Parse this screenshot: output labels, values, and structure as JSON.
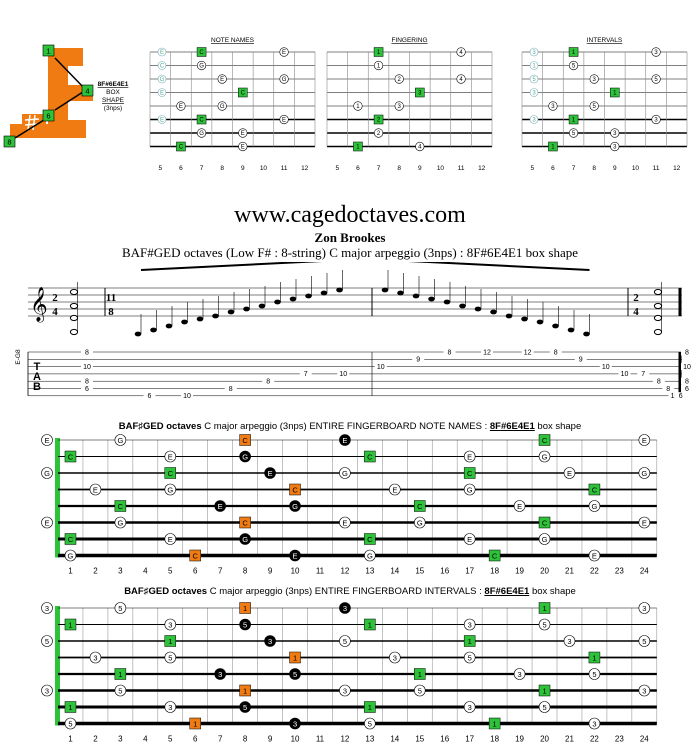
{
  "logo": {
    "notes": [
      "1",
      "4",
      "6",
      "8"
    ],
    "shape_label": [
      "8F#6E4E1",
      "BOX",
      "SHAPE",
      "(3nps)"
    ],
    "colors": {
      "orange": "#f07b12",
      "green": "#2ec13a"
    }
  },
  "mini_diagrams": [
    {
      "title": "NOTE NAMES",
      "grid": [
        [
          "",
          "C",
          "",
          "",
          "E"
        ],
        [
          "",
          "G",
          "",
          "",
          ""
        ],
        [
          "",
          "",
          "E",
          "",
          "G"
        ],
        [
          "",
          "",
          "",
          "C",
          ""
        ],
        [
          "E",
          "",
          "G",
          "",
          ""
        ],
        [
          "",
          "C",
          "",
          "",
          "E"
        ],
        [
          "",
          "G",
          "",
          "E",
          ""
        ],
        [
          "C",
          "",
          "",
          "E",
          ""
        ]
      ],
      "open": [
        "E",
        "C",
        "G",
        "E",
        "",
        "E",
        "",
        ""
      ]
    },
    {
      "title": "FINGERING",
      "grid": [
        [
          "",
          "1",
          "",
          "",
          "4"
        ],
        [
          "",
          "1",
          "",
          "",
          ""
        ],
        [
          "",
          "",
          "2",
          "",
          "4"
        ],
        [
          "",
          "",
          "",
          "3",
          ""
        ],
        [
          "1",
          "",
          "3",
          "",
          ""
        ],
        [
          "",
          "2",
          "",
          "",
          ""
        ],
        [
          "",
          "2",
          "",
          "",
          ""
        ],
        [
          "1",
          "",
          "",
          "4",
          ""
        ]
      ],
      "open": [
        "",
        "",
        "",
        "",
        "",
        "",
        "",
        ""
      ]
    },
    {
      "title": "INTERVALS",
      "grid": [
        [
          "",
          "1",
          "",
          "",
          "3"
        ],
        [
          "",
          "5",
          "",
          "",
          ""
        ],
        [
          "",
          "",
          "3",
          "",
          "5"
        ],
        [
          "",
          "",
          "",
          "1",
          ""
        ],
        [
          "3",
          "",
          "5",
          "",
          ""
        ],
        [
          "",
          "1",
          "",
          "",
          "3"
        ],
        [
          "",
          "5",
          "",
          "3",
          ""
        ],
        [
          "1",
          "",
          "",
          "3",
          ""
        ]
      ],
      "open": [
        "3",
        "1",
        "5",
        "3",
        "",
        "3",
        "",
        ""
      ]
    }
  ],
  "mini_frets": [
    "5",
    "6",
    "7",
    "8",
    "9",
    "10",
    "11",
    "12"
  ],
  "site": "www.cagedoctaves.com",
  "author": "Zon Brookes",
  "subtitle": "BAF#GED octaves (Low F# : 8-string) C major arpeggio (3nps) : 8F#6E4E1 box shape",
  "score": {
    "time_sig": [
      "2",
      "4"
    ],
    "time_sig_mid": [
      "11",
      "8"
    ],
    "tuning_label": "E-G8",
    "tab_letters": [
      "T",
      "A",
      "B"
    ],
    "tab_numbers": [
      {
        "s": 1,
        "f": "8",
        "p": 0.04
      },
      {
        "s": 3,
        "f": "10",
        "p": 0.04
      },
      {
        "s": 5,
        "f": "8",
        "p": 0.04
      },
      {
        "s": 6,
        "f": "6",
        "p": 0.04
      },
      {
        "s": 7,
        "f": "6",
        "p": 0.14
      },
      {
        "s": 7,
        "f": "10",
        "p": 0.2
      },
      {
        "s": 6,
        "f": "8",
        "p": 0.27
      },
      {
        "s": 5,
        "f": "8",
        "p": 0.33
      },
      {
        "s": 4,
        "f": "7",
        "p": 0.39
      },
      {
        "s": 4,
        "f": "10",
        "p": 0.45
      },
      {
        "s": 3,
        "f": "10",
        "p": 0.51
      },
      {
        "s": 2,
        "f": "9",
        "p": 0.57
      },
      {
        "s": 1,
        "f": "8",
        "p": 0.62
      },
      {
        "s": 1,
        "f": "12",
        "p": 0.68
      },
      {
        "s": 1,
        "f": "12",
        "p": 0.745
      },
      {
        "s": 1,
        "f": "8",
        "p": 0.79
      },
      {
        "s": 2,
        "f": "9",
        "p": 0.83
      },
      {
        "s": 3,
        "f": "10",
        "p": 0.87
      },
      {
        "s": 4,
        "f": "10",
        "p": 0.9
      },
      {
        "s": 4,
        "f": "7",
        "p": 0.93
      },
      {
        "s": 5,
        "f": "8",
        "p": 0.955
      },
      {
        "s": 6,
        "f": "8",
        "p": 0.97
      },
      {
        "s": 7,
        "f": "10",
        "p": 0.98
      },
      {
        "s": 7,
        "f": "6",
        "p": 0.99
      },
      {
        "s": 1,
        "f": "8",
        "p": 1.0
      },
      {
        "s": 3,
        "f": "10",
        "p": 1.0
      },
      {
        "s": 5,
        "f": "8",
        "p": 1.0
      },
      {
        "s": 6,
        "f": "6",
        "p": 1.0
      }
    ]
  },
  "fretboards": [
    {
      "title_bold": "BAF♯GED octaves",
      "title_rest": " C major arpeggio (3nps) ENTIRE FINGERBOARD  NOTE NAMES : ",
      "title_shape": "8F#6E4E1",
      "title_end": " box shape",
      "open": [
        "E",
        "",
        "G",
        "",
        "",
        "E",
        "",
        ""
      ],
      "marks": [
        [
          0,
          3,
          "G",
          "w"
        ],
        [
          0,
          8,
          "C",
          "o"
        ],
        [
          0,
          12,
          "E",
          "b"
        ],
        [
          0,
          20,
          "C",
          "g"
        ],
        [
          0,
          24,
          "E",
          "w"
        ],
        [
          1,
          1,
          "C",
          "g"
        ],
        [
          1,
          5,
          "E",
          "w"
        ],
        [
          1,
          8,
          "G",
          "b"
        ],
        [
          1,
          13,
          "C",
          "g"
        ],
        [
          1,
          17,
          "E",
          "w"
        ],
        [
          1,
          20,
          "G",
          "w"
        ],
        [
          2,
          5,
          "C",
          "g"
        ],
        [
          2,
          9,
          "E",
          "b"
        ],
        [
          2,
          12,
          "G",
          "w"
        ],
        [
          2,
          17,
          "C",
          "g"
        ],
        [
          2,
          21,
          "E",
          "w"
        ],
        [
          2,
          24,
          "G",
          "w"
        ],
        [
          3,
          2,
          "E",
          "w"
        ],
        [
          3,
          5,
          "G",
          "w"
        ],
        [
          3,
          10,
          "C",
          "o"
        ],
        [
          3,
          14,
          "E",
          "w"
        ],
        [
          3,
          17,
          "G",
          "w"
        ],
        [
          3,
          22,
          "C",
          "g"
        ],
        [
          4,
          3,
          "C",
          "g"
        ],
        [
          4,
          7,
          "E",
          "b"
        ],
        [
          4,
          10,
          "G",
          "b"
        ],
        [
          4,
          15,
          "C",
          "g"
        ],
        [
          4,
          19,
          "E",
          "w"
        ],
        [
          4,
          22,
          "G",
          "w"
        ],
        [
          5,
          3,
          "G",
          "w"
        ],
        [
          5,
          8,
          "C",
          "o"
        ],
        [
          5,
          12,
          "E",
          "w"
        ],
        [
          5,
          15,
          "G",
          "w"
        ],
        [
          5,
          20,
          "C",
          "g"
        ],
        [
          5,
          24,
          "E",
          "w"
        ],
        [
          6,
          1,
          "C",
          "g"
        ],
        [
          6,
          5,
          "E",
          "w"
        ],
        [
          6,
          8,
          "G",
          "b"
        ],
        [
          6,
          13,
          "C",
          "g"
        ],
        [
          6,
          17,
          "E",
          "w"
        ],
        [
          6,
          20,
          "G",
          "w"
        ],
        [
          7,
          1,
          "G",
          "w"
        ],
        [
          7,
          6,
          "C",
          "o"
        ],
        [
          7,
          10,
          "E",
          "b"
        ],
        [
          7,
          13,
          "G",
          "w"
        ],
        [
          7,
          18,
          "C",
          "g"
        ],
        [
          7,
          22,
          "E",
          "w"
        ]
      ]
    },
    {
      "title_bold": "BAF♯GED octaves",
      "title_rest": " C major arpeggio (3nps) ENTIRE FINGERBOARD  INTERVALS : ",
      "title_shape": "8F#6E4E1",
      "title_end": " box shape",
      "open": [
        "3",
        "",
        "5",
        "",
        "",
        "3",
        "",
        ""
      ],
      "marks": [
        [
          0,
          3,
          "5",
          "w"
        ],
        [
          0,
          8,
          "1",
          "o"
        ],
        [
          0,
          12,
          "3",
          "b"
        ],
        [
          0,
          20,
          "1",
          "g"
        ],
        [
          0,
          24,
          "3",
          "w"
        ],
        [
          1,
          1,
          "1",
          "g"
        ],
        [
          1,
          5,
          "3",
          "w"
        ],
        [
          1,
          8,
          "5",
          "b"
        ],
        [
          1,
          13,
          "1",
          "g"
        ],
        [
          1,
          17,
          "3",
          "w"
        ],
        [
          1,
          20,
          "5",
          "w"
        ],
        [
          2,
          5,
          "1",
          "g"
        ],
        [
          2,
          9,
          "3",
          "b"
        ],
        [
          2,
          12,
          "5",
          "w"
        ],
        [
          2,
          17,
          "1",
          "g"
        ],
        [
          2,
          21,
          "3",
          "w"
        ],
        [
          2,
          24,
          "5",
          "w"
        ],
        [
          3,
          2,
          "3",
          "w"
        ],
        [
          3,
          5,
          "5",
          "w"
        ],
        [
          3,
          10,
          "1",
          "o"
        ],
        [
          3,
          14,
          "3",
          "w"
        ],
        [
          3,
          17,
          "5",
          "w"
        ],
        [
          3,
          22,
          "1",
          "g"
        ],
        [
          4,
          3,
          "1",
          "g"
        ],
        [
          4,
          7,
          "3",
          "b"
        ],
        [
          4,
          10,
          "5",
          "b"
        ],
        [
          4,
          15,
          "1",
          "g"
        ],
        [
          4,
          19,
          "3",
          "w"
        ],
        [
          4,
          22,
          "5",
          "w"
        ],
        [
          5,
          3,
          "5",
          "w"
        ],
        [
          5,
          8,
          "1",
          "o"
        ],
        [
          5,
          12,
          "3",
          "w"
        ],
        [
          5,
          15,
          "5",
          "w"
        ],
        [
          5,
          20,
          "1",
          "g"
        ],
        [
          5,
          24,
          "3",
          "w"
        ],
        [
          6,
          1,
          "1",
          "g"
        ],
        [
          6,
          5,
          "3",
          "w"
        ],
        [
          6,
          8,
          "5",
          "b"
        ],
        [
          6,
          13,
          "1",
          "g"
        ],
        [
          6,
          17,
          "3",
          "w"
        ],
        [
          6,
          20,
          "5",
          "w"
        ],
        [
          7,
          1,
          "5",
          "w"
        ],
        [
          7,
          6,
          "1",
          "o"
        ],
        [
          7,
          10,
          "3",
          "b"
        ],
        [
          7,
          13,
          "5",
          "w"
        ],
        [
          7,
          18,
          "1",
          "g"
        ],
        [
          7,
          22,
          "3",
          "w"
        ]
      ]
    }
  ],
  "fret_numbers": [
    "1",
    "2",
    "3",
    "4",
    "5",
    "6",
    "7",
    "8",
    "9",
    "10",
    "11",
    "12",
    "13",
    "14",
    "15",
    "16",
    "17",
    "18",
    "19",
    "20",
    "21",
    "22",
    "23",
    "24"
  ]
}
